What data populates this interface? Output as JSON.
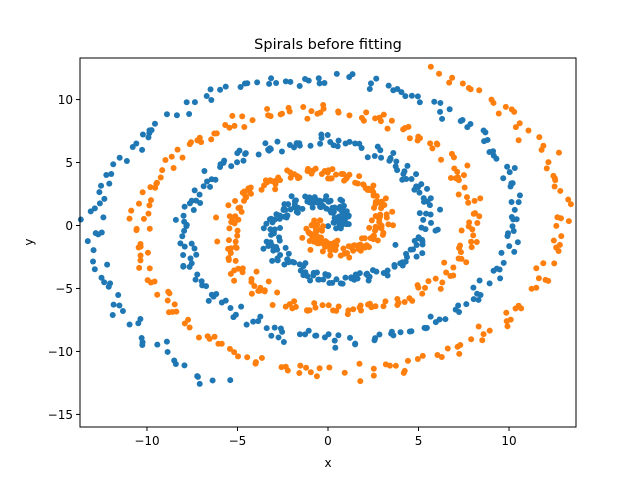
{
  "chart_data": {
    "type": "scatter",
    "title": "Spirals before fitting",
    "xlabel": "x",
    "ylabel": "y",
    "xlim": [
      -13.7,
      13.7
    ],
    "ylim": [
      -16,
      13.3
    ],
    "xticks": [
      -10,
      -5,
      0,
      5,
      10
    ],
    "yticks": [
      -15,
      -10,
      -5,
      0,
      5,
      10
    ],
    "xtick_labels": [
      "−10",
      "−5",
      "0",
      "5",
      "10"
    ],
    "ytick_labels": [
      "−15",
      "−10",
      "−5",
      "0",
      "5",
      "10"
    ],
    "grid": false,
    "legend": "none",
    "points_per_series": 500,
    "series": [
      {
        "color": "#1f77b4",
        "curve": "spiral",
        "r_start": 0.5,
        "r_end": 13.7,
        "theta_start_deg": 0,
        "theta_end_deg": 965,
        "jitter": 0.3
      },
      {
        "color": "#ff7f0e",
        "curve": "spiral",
        "r_start": 0.5,
        "r_end": 13.7,
        "theta_start_deg": 180,
        "theta_end_deg": 1145,
        "jitter": 0.3
      }
    ]
  }
}
